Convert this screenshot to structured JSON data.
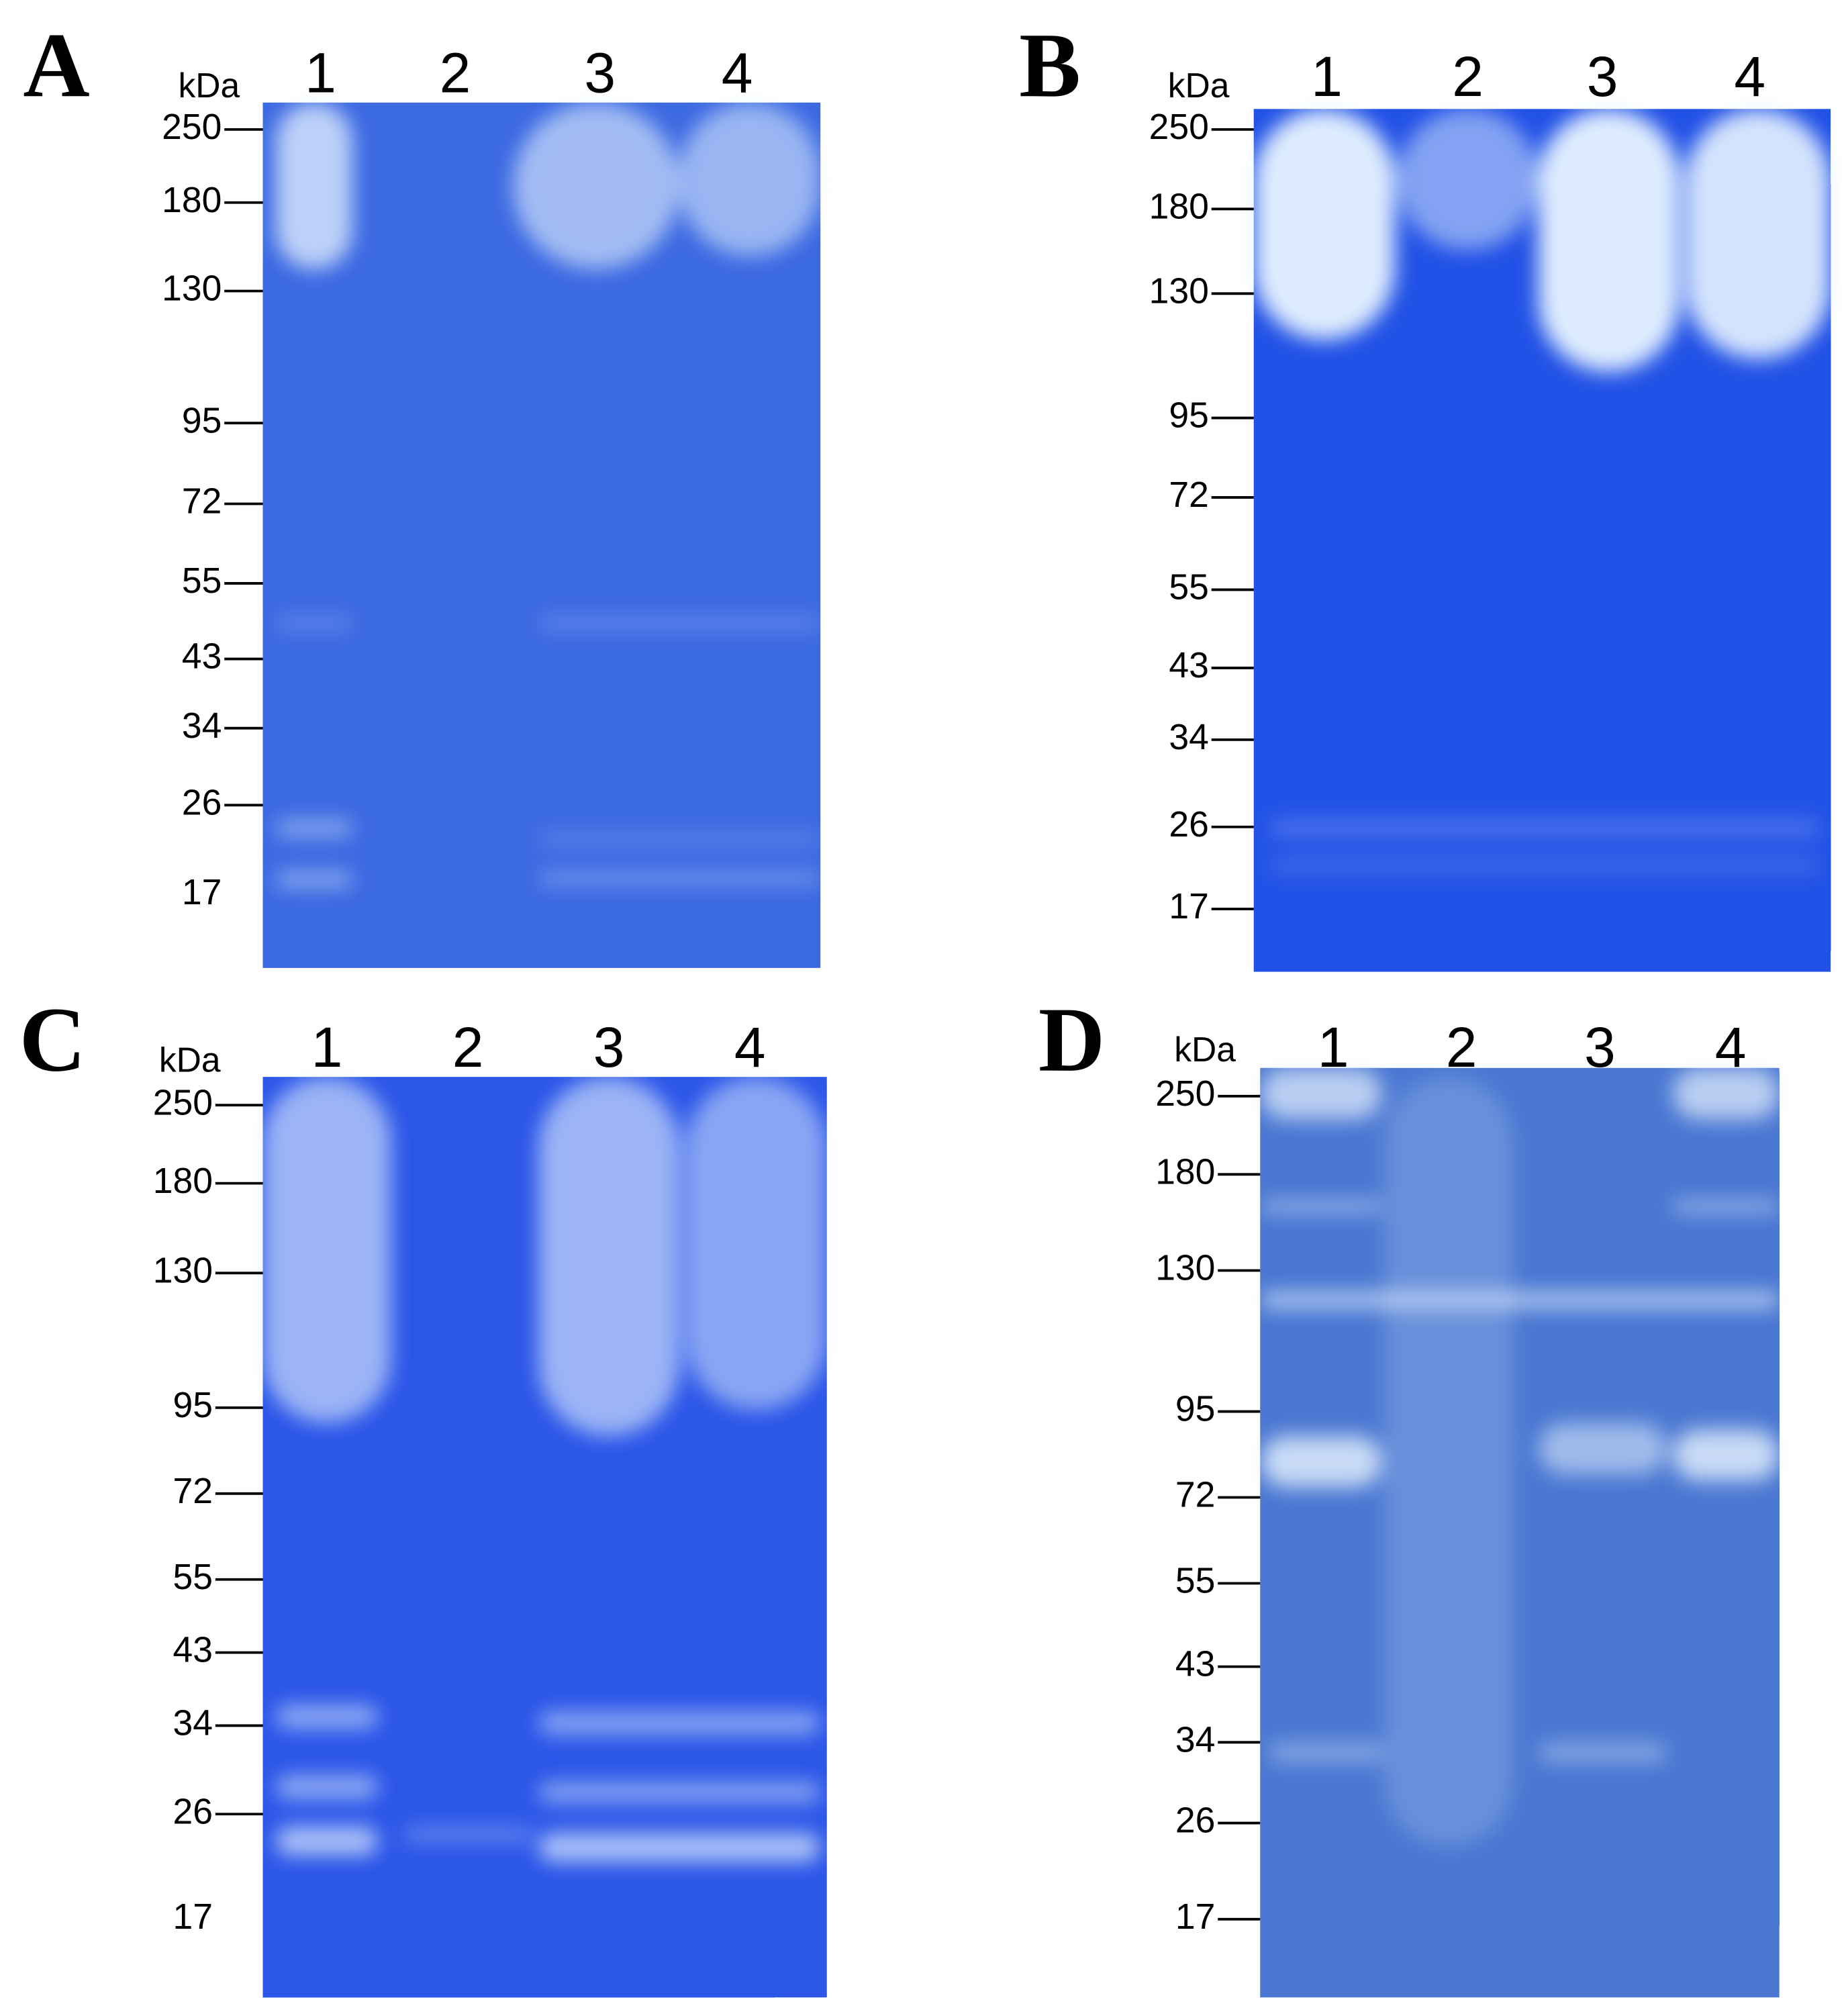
{
  "panels": [
    {
      "label": "A",
      "unit": "kDa",
      "lanes": [
        "1",
        "2",
        "3",
        "4"
      ],
      "markers": [
        250,
        180,
        130,
        95,
        72,
        55,
        43,
        34,
        26,
        17
      ]
    },
    {
      "label": "B",
      "unit": "kDa",
      "lanes": [
        "1",
        "2",
        "3",
        "4"
      ],
      "markers": [
        250,
        180,
        130,
        95,
        72,
        55,
        43,
        34,
        26,
        17
      ]
    },
    {
      "label": "C",
      "unit": "kDa",
      "lanes": [
        "1",
        "2",
        "3",
        "4"
      ],
      "markers": [
        250,
        180,
        130,
        95,
        72,
        55,
        43,
        34,
        26,
        17
      ]
    },
    {
      "label": "D",
      "unit": "kDa",
      "lanes": [
        "1",
        "2",
        "3",
        "4"
      ],
      "markers": [
        250,
        180,
        130,
        95,
        72,
        55,
        43,
        34,
        26,
        17
      ]
    }
  ]
}
